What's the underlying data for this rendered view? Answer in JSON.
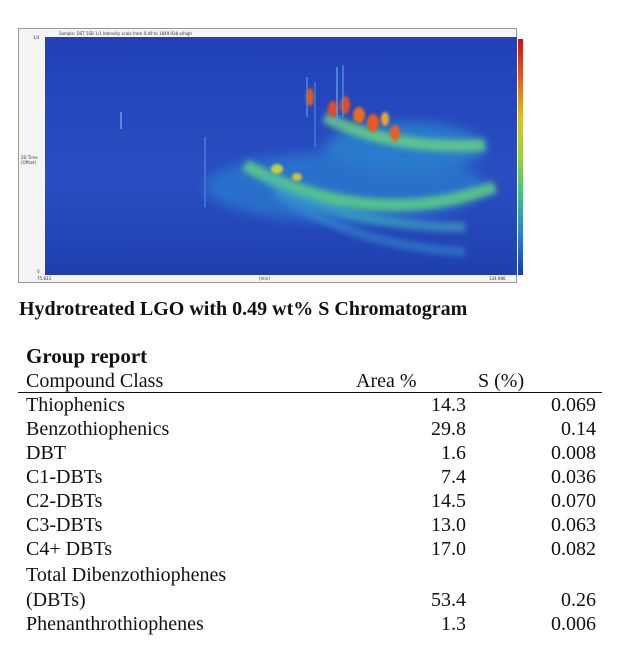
{
  "chromatogram": {
    "header_text": "Sample: DST 5SB 1/1          Intensity scale from 0.49 to 1849.938 a/high",
    "y_top_tick": "1/4",
    "y_bottom_tick": "0",
    "y_axis_label": "2D Time (Offset)",
    "x_left_tick": "75.833",
    "x_mid_label": "[min]",
    "x_right_tick": "134.986",
    "colorbar": [
      "#d01010",
      "#e06020",
      "#e0c020",
      "#9ad040",
      "#40c080",
      "#2a80d0",
      "#1a3ab0"
    ]
  },
  "caption": "Hydrotreated LGO with 0.49 wt% S Chromatogram",
  "report": {
    "title": "Group report",
    "columns": [
      "Compound Class",
      "Area %",
      "S (%)"
    ],
    "rows": [
      {
        "name": "Thiophenics",
        "area": "14.3",
        "s": "0.069"
      },
      {
        "name": "Benzothiophenics",
        "area": "29.8",
        "s": "0.14"
      },
      {
        "name": "DBT",
        "area": "1.6",
        "s": "0.008"
      },
      {
        "name": "C1-DBTs",
        "area": "7.4",
        "s": "0.036"
      },
      {
        "name": "C2-DBTs",
        "area": "14.5",
        "s": "0.070"
      },
      {
        "name": "C3-DBTs",
        "area": "13.0",
        "s": "0.063"
      },
      {
        "name": "C4+ DBTs",
        "area": "17.0",
        "s": "0.082"
      },
      {
        "name": "Total Dibenzothiophenes",
        "area": "",
        "s": ""
      },
      {
        "name": "(DBTs)",
        "area": "53.4",
        "s": "0.26"
      },
      {
        "name": "Phenanthrothiophenes",
        "area": "1.3",
        "s": "0.006"
      }
    ]
  }
}
